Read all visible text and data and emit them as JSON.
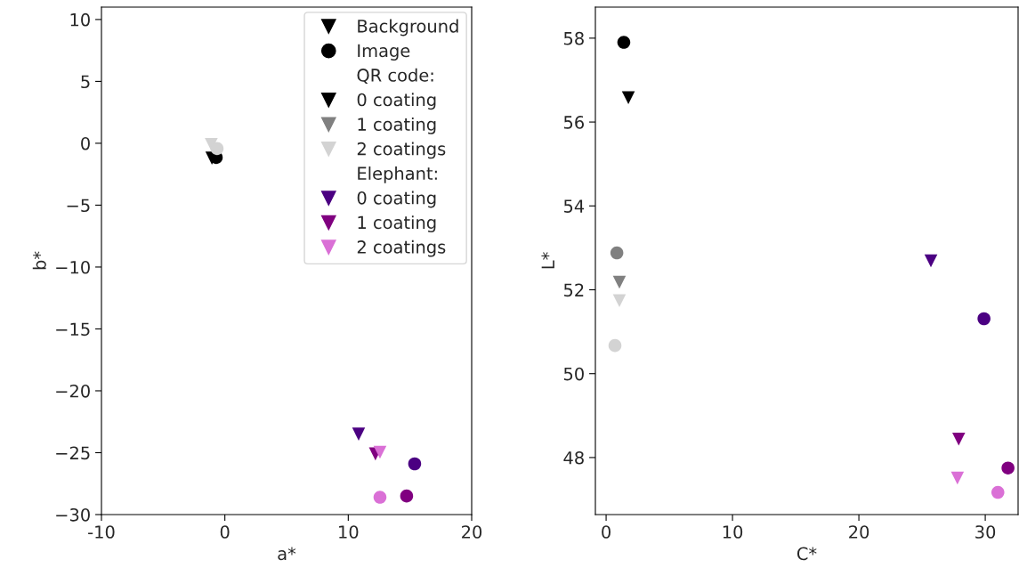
{
  "chart_data": [
    {
      "type": "scatter",
      "xlabel": "a*",
      "ylabel": "b*",
      "xlim": [
        -10,
        20
      ],
      "ylim": [
        -30,
        11
      ],
      "xticks": [
        -10,
        0,
        10,
        20
      ],
      "yticks": [
        {
          "value": -30,
          "label": "−30"
        },
        {
          "value": -25,
          "label": "−25"
        },
        {
          "value": -20,
          "label": "−20"
        },
        {
          "value": -15,
          "label": "−15"
        },
        {
          "value": -10,
          "label": "−10"
        },
        {
          "value": -5,
          "label": "−5"
        },
        0,
        5,
        10
      ],
      "grid": false,
      "legend": "top right",
      "annotations": [
        "Background",
        "Image",
        "QR code:",
        "Elephant:"
      ],
      "series": [
        {
          "name": "0 coating",
          "color": "#000000",
          "marker": "triangle",
          "x": [
            -1.05
          ],
          "values": [
            -1.2
          ]
        },
        {
          "color": "#000000",
          "marker": "circle",
          "x": [
            -0.7
          ],
          "values": [
            -1.15
          ]
        },
        {
          "name": "1 coating",
          "color": "#808080",
          "marker": "triangle",
          "x": [
            null
          ],
          "values": [
            null
          ]
        },
        {
          "color": "#808080",
          "marker": "circle",
          "x": [
            null
          ],
          "values": [
            null
          ]
        },
        {
          "name": "2 coatings",
          "color": "#d3d3d3",
          "marker": "triangle",
          "x": [
            -1.1
          ],
          "values": [
            -0.1
          ]
        },
        {
          "color": "#d3d3d3",
          "marker": "circle",
          "x": [
            -0.63
          ],
          "values": [
            -0.43
          ]
        },
        {
          "name": "0 coating",
          "color": "#4b0082",
          "marker": "triangle",
          "x": [
            10.84
          ],
          "values": [
            -23.5
          ]
        },
        {
          "color": "#4b0082",
          "marker": "circle",
          "x": [
            15.38
          ],
          "values": [
            -25.9
          ]
        },
        {
          "name": "1 coating",
          "color": "#800080",
          "marker": "triangle",
          "x": [
            12.2
          ],
          "values": [
            -25.1
          ]
        },
        {
          "color": "#800080",
          "marker": "circle",
          "x": [
            14.73
          ],
          "values": [
            -28.5
          ]
        },
        {
          "name": "2 coatings",
          "color": "#da70d6",
          "marker": "triangle",
          "x": [
            12.57
          ],
          "values": [
            -24.96
          ]
        },
        {
          "color": "#da70d6",
          "marker": "circle",
          "x": [
            12.57
          ],
          "values": [
            -28.6
          ]
        }
      ]
    },
    {
      "type": "scatter",
      "xlabel": "C*",
      "ylabel": "L*",
      "xlim": [
        -0.85,
        32.6
      ],
      "ylim": [
        46.64,
        58.74
      ],
      "xticks": [
        0,
        10,
        20,
        30
      ],
      "yticks": [
        48,
        50,
        52,
        54,
        56,
        58
      ],
      "grid": false,
      "legend": false,
      "series": [
        {
          "color": "#000000",
          "marker": "triangle",
          "x": [
            1.76
          ],
          "values": [
            56.58
          ]
        },
        {
          "color": "#000000",
          "marker": "circle",
          "x": [
            1.4
          ],
          "values": [
            57.9
          ]
        },
        {
          "color": "#808080",
          "marker": "triangle",
          "x": [
            1.05
          ],
          "values": [
            52.18
          ]
        },
        {
          "color": "#808080",
          "marker": "circle",
          "x": [
            0.85
          ],
          "values": [
            52.88
          ]
        },
        {
          "color": "#d3d3d3",
          "marker": "triangle",
          "x": [
            1.05
          ],
          "values": [
            51.74
          ]
        },
        {
          "color": "#d3d3d3",
          "marker": "circle",
          "x": [
            0.7
          ],
          "values": [
            50.67
          ]
        },
        {
          "color": "#4b0082",
          "marker": "triangle",
          "x": [
            25.7
          ],
          "values": [
            52.69
          ]
        },
        {
          "color": "#4b0082",
          "marker": "circle",
          "x": [
            29.9
          ],
          "values": [
            51.31
          ]
        },
        {
          "color": "#800080",
          "marker": "triangle",
          "x": [
            27.9
          ],
          "values": [
            48.44
          ]
        },
        {
          "color": "#800080",
          "marker": "circle",
          "x": [
            31.8
          ],
          "values": [
            47.75
          ]
        },
        {
          "color": "#da70d6",
          "marker": "triangle",
          "x": [
            27.8
          ],
          "values": [
            47.51
          ]
        },
        {
          "color": "#da70d6",
          "marker": "circle",
          "x": [
            31.0
          ],
          "values": [
            47.17
          ]
        }
      ]
    }
  ]
}
